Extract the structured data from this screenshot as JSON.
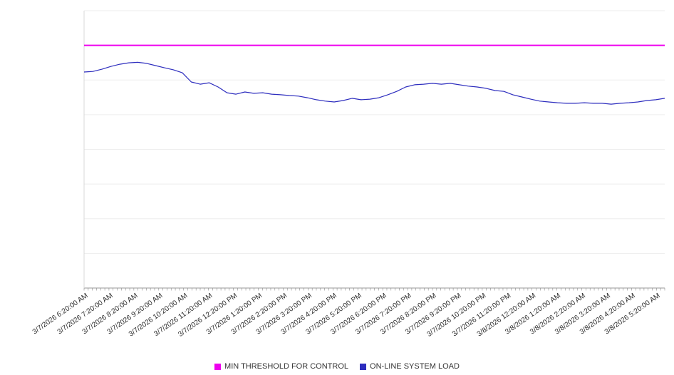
{
  "chart_data": {
    "type": "line",
    "title": "",
    "xlabel": "",
    "ylabel": "",
    "ylim": [
      0,
      100
    ],
    "grid": "horizontal-light",
    "grid_divisions": 8,
    "legend_position": "bottom-center",
    "x_tick_labels": [
      "3/7/2026 6:20:00 AM",
      "3/7/2026 7:20:00 AM",
      "3/7/2026 8:20:00 AM",
      "3/7/2026 9:20:00 AM",
      "3/7/2026 10:20:00 AM",
      "3/7/2026 11:20:00 AM",
      "3/7/2026 12:20:00 PM",
      "3/7/2026 1:20:00 PM",
      "3/7/2026 2:20:00 PM",
      "3/7/2026 3:20:00 PM",
      "3/7/2026 4:20:00 PM",
      "3/7/2026 5:20:00 PM",
      "3/7/2026 6:20:00 PM",
      "3/7/2026 7:20:00 PM",
      "3/7/2026 8:20:00 PM",
      "3/7/2026 9:20:00 PM",
      "3/7/2026 10:20:00 PM",
      "3/7/2026 11:20:00 PM",
      "3/8/2026 12:20:00 AM",
      "3/8/2026 1:20:00 AM",
      "3/8/2026 2:20:00 AM",
      "3/8/2026 3:20:00 AM",
      "3/8/2026 4:20:00 AM",
      "3/8/2026 5:20:00 AM"
    ],
    "x_sampling_note": "load values evenly spaced in time from first to last tick",
    "series": [
      {
        "name": "MIN THRESHOLD FOR CONTROL",
        "kind": "constant-threshold",
        "color": "#ee00ee",
        "value": 87.5
      },
      {
        "name": "ON-LINE SYSTEM LOAD",
        "kind": "line",
        "color": "#2d2dbe",
        "values": [
          77.9,
          78.1,
          78.9,
          79.9,
          80.7,
          81.2,
          81.4,
          81.0,
          80.2,
          79.4,
          78.7,
          77.6,
          74.3,
          73.5,
          74.0,
          72.5,
          70.4,
          69.9,
          70.7,
          70.2,
          70.4,
          69.9,
          69.7,
          69.4,
          69.2,
          68.6,
          67.9,
          67.4,
          67.1,
          67.6,
          68.4,
          67.9,
          68.1,
          68.6,
          69.7,
          70.9,
          72.5,
          73.3,
          73.5,
          73.8,
          73.5,
          73.8,
          73.3,
          72.8,
          72.5,
          72.0,
          71.2,
          70.9,
          69.7,
          68.9,
          68.1,
          67.4,
          67.1,
          66.8,
          66.6,
          66.6,
          66.8,
          66.6,
          66.6,
          66.3,
          66.6,
          66.8,
          67.1,
          67.6,
          67.9,
          68.4
        ]
      }
    ]
  }
}
